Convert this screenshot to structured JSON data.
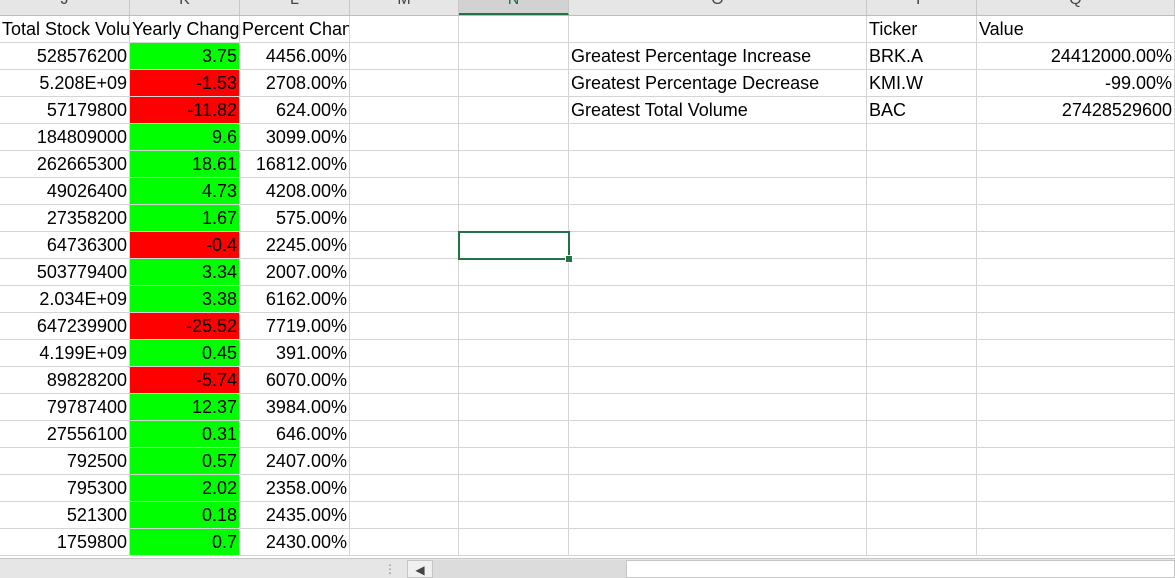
{
  "columns": [
    "J",
    "K",
    "L",
    "M",
    "N",
    "O",
    "P",
    "Q"
  ],
  "selected_column": "N",
  "headers": {
    "j": "Total Stock Volume",
    "k": "Yearly Change",
    "l": "Percent Change"
  },
  "rows": [
    {
      "volume": "528576200",
      "change": "3.75",
      "change_color": "#00ff00",
      "percent": "4456.00%"
    },
    {
      "volume": "5.208E+09",
      "change": "-1.53",
      "change_color": "#ff0000",
      "percent": "2708.00%"
    },
    {
      "volume": "57179800",
      "change": "-11.82",
      "change_color": "#ff0000",
      "percent": "624.00%"
    },
    {
      "volume": "184809000",
      "change": "9.6",
      "change_color": "#00ff00",
      "percent": "3099.00%"
    },
    {
      "volume": "262665300",
      "change": "18.61",
      "change_color": "#00ff00",
      "percent": "16812.00%"
    },
    {
      "volume": "49026400",
      "change": "4.73",
      "change_color": "#00ff00",
      "percent": "4208.00%"
    },
    {
      "volume": "27358200",
      "change": "1.67",
      "change_color": "#00ff00",
      "percent": "575.00%"
    },
    {
      "volume": "64736300",
      "change": "-0.4",
      "change_color": "#ff0000",
      "percent": "2245.00%"
    },
    {
      "volume": "503779400",
      "change": "3.34",
      "change_color": "#00ff00",
      "percent": "2007.00%"
    },
    {
      "volume": "2.034E+09",
      "change": "3.38",
      "change_color": "#00ff00",
      "percent": "6162.00%"
    },
    {
      "volume": "647239900",
      "change": "-25.52",
      "change_color": "#ff0000",
      "percent": "7719.00%"
    },
    {
      "volume": "4.199E+09",
      "change": "0.45",
      "change_color": "#00ff00",
      "percent": "391.00%"
    },
    {
      "volume": "89828200",
      "change": "-5.74",
      "change_color": "#ff0000",
      "percent": "6070.00%"
    },
    {
      "volume": "79787400",
      "change": "12.37",
      "change_color": "#00ff00",
      "percent": "3984.00%"
    },
    {
      "volume": "27556100",
      "change": "0.31",
      "change_color": "#00ff00",
      "percent": "646.00%"
    },
    {
      "volume": "792500",
      "change": "0.57",
      "change_color": "#00ff00",
      "percent": "2407.00%"
    },
    {
      "volume": "795300",
      "change": "2.02",
      "change_color": "#00ff00",
      "percent": "2358.00%"
    },
    {
      "volume": "521300",
      "change": "0.18",
      "change_color": "#00ff00",
      "percent": "2435.00%"
    },
    {
      "volume": "1759800",
      "change": "0.7",
      "change_color": "#00ff00",
      "percent": "2430.00%"
    }
  ],
  "summary": {
    "ticker_header": "Ticker",
    "value_header": "Value",
    "items": [
      {
        "label": "Greatest Percentage Increase",
        "ticker": "BRK.A",
        "value": "24412000.00%"
      },
      {
        "label": "Greatest Percentage Decrease",
        "ticker": "KMI.W",
        "value": "-99.00%"
      },
      {
        "label": "Greatest Total Volume",
        "ticker": "BAC",
        "value": "27428529600"
      }
    ]
  },
  "colors": {
    "positive": "#00ff00",
    "negative": "#ff0000",
    "selection": "#217346"
  }
}
